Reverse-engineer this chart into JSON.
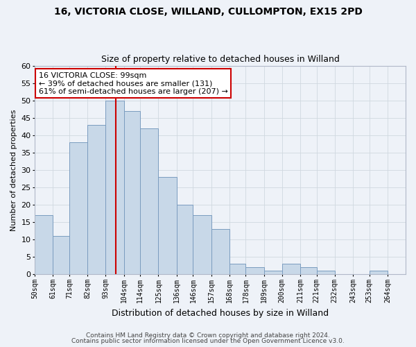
{
  "title1": "16, VICTORIA CLOSE, WILLAND, CULLOMPTON, EX15 2PD",
  "title2": "Size of property relative to detached houses in Willand",
  "xlabel": "Distribution of detached houses by size in Willand",
  "ylabel": "Number of detached properties",
  "bin_labels": [
    "50sqm",
    "61sqm",
    "71sqm",
    "82sqm",
    "93sqm",
    "104sqm",
    "114sqm",
    "125sqm",
    "136sqm",
    "146sqm",
    "157sqm",
    "168sqm",
    "178sqm",
    "189sqm",
    "200sqm",
    "211sqm",
    "221sqm",
    "232sqm",
    "243sqm",
    "253sqm",
    "264sqm"
  ],
  "bin_edges": [
    50,
    61,
    71,
    82,
    93,
    104,
    114,
    125,
    136,
    146,
    157,
    168,
    178,
    189,
    200,
    211,
    221,
    232,
    243,
    253,
    264,
    275
  ],
  "counts": [
    17,
    11,
    38,
    43,
    50,
    47,
    42,
    28,
    20,
    17,
    13,
    3,
    2,
    1,
    3,
    2,
    1,
    0,
    0,
    1,
    0
  ],
  "bar_color": "#c8d8e8",
  "bar_edge_color": "#7a9cbf",
  "grid_color": "#d0d8e0",
  "bg_color": "#eef2f8",
  "vline_x": 99,
  "vline_color": "#cc0000",
  "annotation_text": "16 VICTORIA CLOSE: 99sqm\n← 39% of detached houses are smaller (131)\n61% of semi-detached houses are larger (207) →",
  "annotation_box_color": "#ffffff",
  "annotation_box_edge": "#cc0000",
  "ylim": [
    0,
    60
  ],
  "yticks": [
    0,
    5,
    10,
    15,
    20,
    25,
    30,
    35,
    40,
    45,
    50,
    55,
    60
  ],
  "footnote1": "Contains HM Land Registry data © Crown copyright and database right 2024.",
  "footnote2": "Contains public sector information licensed under the Open Government Licence v3.0."
}
